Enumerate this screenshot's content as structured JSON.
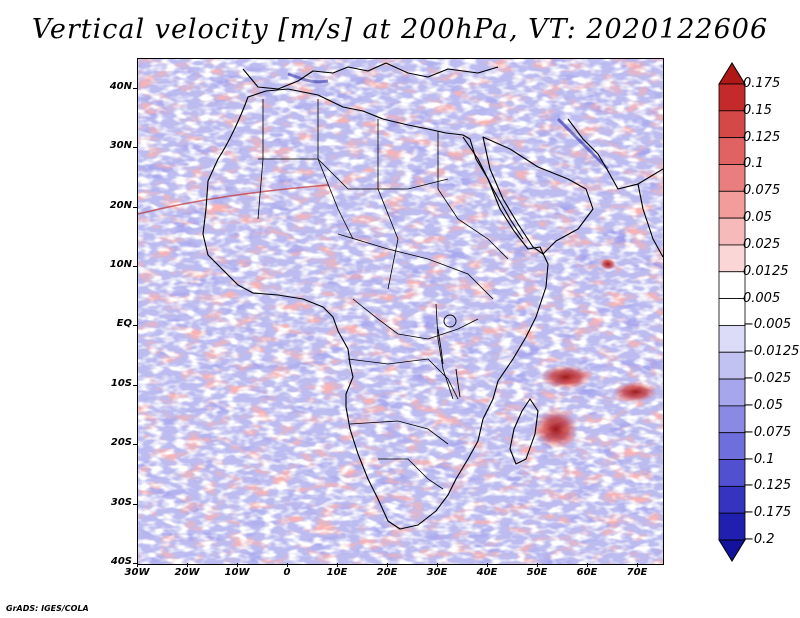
{
  "title": "Vertical velocity [m/s] at 200hPa, VT: 2020122606",
  "credit": "GrADS: IGES/COLA",
  "map": {
    "lon_range": [
      -30,
      75
    ],
    "lat_range": [
      -40,
      45
    ],
    "lat_labels": [
      {
        "lat": 40,
        "text": "40N"
      },
      {
        "lat": 30,
        "text": "30N"
      },
      {
        "lat": 20,
        "text": "20N"
      },
      {
        "lat": 10,
        "text": "10N"
      },
      {
        "lat": 0,
        "text": "EQ"
      },
      {
        "lat": -10,
        "text": "10S"
      },
      {
        "lat": -20,
        "text": "20S"
      },
      {
        "lat": -30,
        "text": "30S"
      },
      {
        "lat": -40,
        "text": "40S"
      }
    ],
    "lon_labels": [
      {
        "lon": -30,
        "text": "30W"
      },
      {
        "lon": -20,
        "text": "20W"
      },
      {
        "lon": -10,
        "text": "10W"
      },
      {
        "lon": 0,
        "text": "0"
      },
      {
        "lon": 10,
        "text": "10E"
      },
      {
        "lon": 20,
        "text": "20E"
      },
      {
        "lon": 30,
        "text": "30E"
      },
      {
        "lon": 40,
        "text": "40E"
      },
      {
        "lon": 50,
        "text": "50E"
      },
      {
        "lon": 60,
        "text": "60E"
      },
      {
        "lon": 70,
        "text": "70E"
      }
    ]
  },
  "colorbar": {
    "levels": [
      "0.175",
      "0.15",
      "0.125",
      "0.1",
      "0.075",
      "0.05",
      "0.025",
      "0.0125",
      "0.005",
      "−0.005",
      "−0.0125",
      "−0.025",
      "−0.05",
      "−0.075",
      "−0.1",
      "−0.125",
      "−0.175",
      "−0.2"
    ],
    "colors": [
      "#b01818",
      "#c42a2a",
      "#d54848",
      "#e06262",
      "#ea7e7e",
      "#f29c9c",
      "#f7baba",
      "#fbd6d6",
      "#ffffff",
      "#ffffff",
      "#dcdcf8",
      "#c2c2f2",
      "#a6a6ec",
      "#8a8ae4",
      "#6e6edc",
      "#5050d0",
      "#3434c0",
      "#2020b0",
      "#12129c"
    ]
  }
}
